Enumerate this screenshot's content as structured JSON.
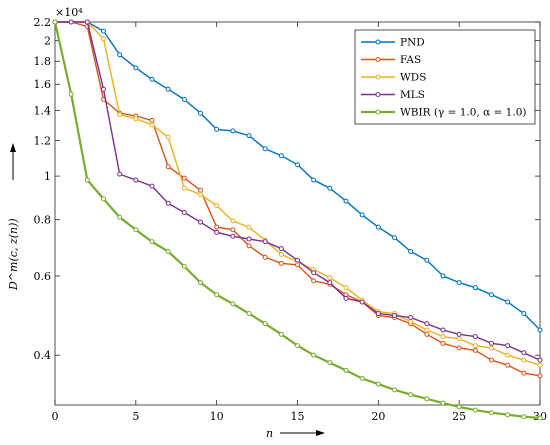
{
  "chart_data": {
    "type": "line",
    "title": "",
    "xlabel": "n",
    "ylabel": "D^m(c, z(n))",
    "exponent_label": "×10⁴",
    "y_scale": "log",
    "xlim": [
      0,
      30
    ],
    "ylim": [
      0.31,
      2.2
    ],
    "x_ticks": [
      0,
      5,
      10,
      15,
      20,
      25,
      30
    ],
    "y_ticks": [
      0.4,
      0.6,
      0.8,
      1.0,
      1.2,
      1.4,
      1.6,
      1.8,
      2.0,
      2.2
    ],
    "y_tick_labels": [
      "0.4",
      "0.6",
      "0.8",
      "1",
      "1.2",
      "1.4",
      "1.6",
      "1.8",
      "2",
      "2.2"
    ],
    "grid": false,
    "legend_position": "top-right",
    "x": [
      0,
      1,
      2,
      3,
      4,
      5,
      6,
      7,
      8,
      9,
      10,
      11,
      12,
      13,
      14,
      15,
      16,
      17,
      18,
      19,
      20,
      21,
      22,
      23,
      24,
      25,
      26,
      27,
      28,
      29,
      30
    ],
    "series": [
      {
        "name": "PND",
        "color": "#0072BD",
        "values": [
          2.2,
          2.2,
          2.2,
          2.1,
          1.86,
          1.74,
          1.64,
          1.56,
          1.48,
          1.38,
          1.27,
          1.26,
          1.23,
          1.15,
          1.11,
          1.06,
          0.98,
          0.94,
          0.88,
          0.82,
          0.77,
          0.73,
          0.68,
          0.65,
          0.6,
          0.58,
          0.565,
          0.545,
          0.525,
          0.495,
          0.455
        ]
      },
      {
        "name": "FAS",
        "color": "#D95319",
        "values": [
          2.2,
          2.2,
          2.15,
          1.48,
          1.38,
          1.36,
          1.33,
          1.05,
          0.99,
          0.93,
          0.77,
          0.76,
          0.7,
          0.66,
          0.64,
          0.635,
          0.585,
          0.575,
          0.545,
          0.525,
          0.49,
          0.485,
          0.47,
          0.445,
          0.425,
          0.415,
          0.41,
          0.39,
          0.38,
          0.365,
          0.36
        ]
      },
      {
        "name": "WDS",
        "color": "#EDB120",
        "values": [
          2.2,
          2.2,
          2.2,
          2.02,
          1.37,
          1.34,
          1.3,
          1.22,
          0.94,
          0.91,
          0.86,
          0.795,
          0.77,
          0.72,
          0.67,
          0.645,
          0.62,
          0.595,
          0.565,
          0.53,
          0.5,
          0.495,
          0.475,
          0.455,
          0.44,
          0.435,
          0.42,
          0.415,
          0.4,
          0.39,
          0.38
        ]
      },
      {
        "name": "MLS",
        "color": "#7E2F8E",
        "values": [
          2.2,
          2.2,
          2.2,
          1.56,
          1.01,
          0.98,
          0.95,
          0.87,
          0.83,
          0.79,
          0.75,
          0.735,
          0.725,
          0.715,
          0.69,
          0.65,
          0.61,
          0.58,
          0.535,
          0.525,
          0.495,
          0.49,
          0.485,
          0.47,
          0.455,
          0.445,
          0.44,
          0.425,
          0.42,
          0.405,
          0.39
        ]
      },
      {
        "name": "WBIR (γ = 1.0, α = 1.0)",
        "color": "#77AC30",
        "values": [
          2.2,
          1.52,
          0.98,
          0.89,
          0.81,
          0.76,
          0.715,
          0.68,
          0.63,
          0.58,
          0.545,
          0.52,
          0.495,
          0.47,
          0.445,
          0.42,
          0.4,
          0.385,
          0.37,
          0.355,
          0.345,
          0.335,
          0.327,
          0.32,
          0.313,
          0.307,
          0.302,
          0.298,
          0.295,
          0.292,
          0.29
        ]
      }
    ]
  }
}
